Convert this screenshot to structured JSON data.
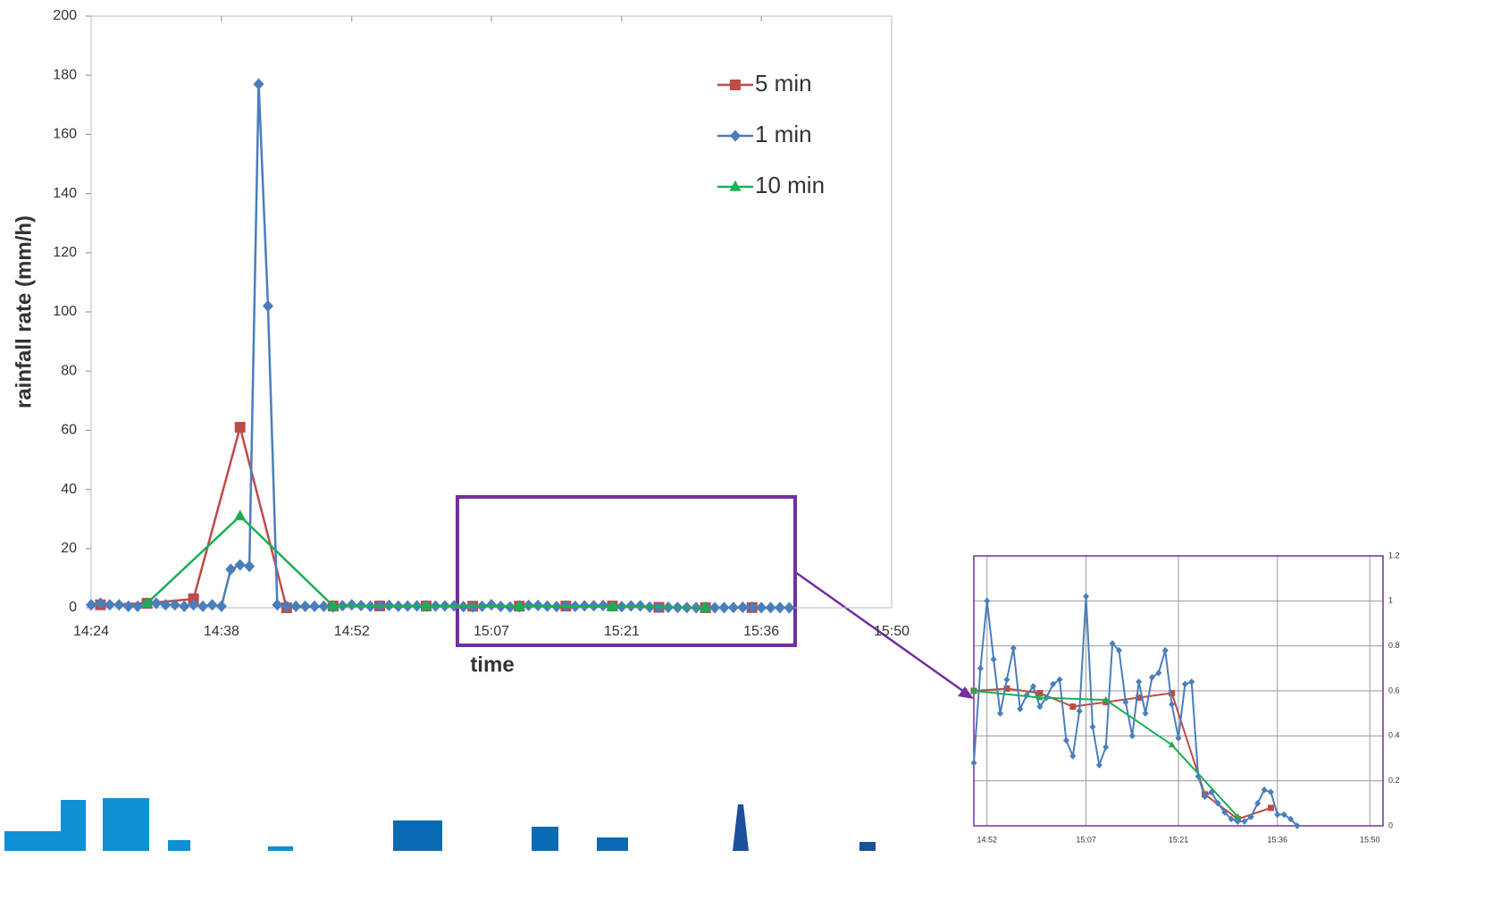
{
  "chart_data": [
    {
      "type": "line",
      "xlabel": "time",
      "ylabel": "rainfall rate (mm/h)",
      "xlim": [
        "14:24",
        "15:50"
      ],
      "xticks": [
        "14:24",
        "14:38",
        "14:52",
        "15:07",
        "15:21",
        "15:36",
        "15:50"
      ],
      "ylim": [
        0,
        200
      ],
      "yticks": [
        0,
        20,
        40,
        60,
        80,
        100,
        120,
        140,
        160,
        180,
        200
      ],
      "grid": false,
      "legend": "upper right",
      "series": [
        {
          "name": "5 min",
          "color": "#be4b48",
          "marker": "square",
          "x": [
            "14:25",
            "14:30",
            "14:35",
            "14:40",
            "14:45",
            "14:50",
            "14:55",
            "15:00",
            "15:05",
            "15:10",
            "15:15",
            "15:20",
            "15:25",
            "15:30",
            "15:35"
          ],
          "values": [
            1,
            1.5,
            3,
            61,
            0,
            0.6,
            0.61,
            0.59,
            0.53,
            0.55,
            0.57,
            0.59,
            0.14,
            0.03,
            0.08
          ]
        },
        {
          "name": "1 min",
          "color": "#4a7ebb",
          "marker": "diamond",
          "x": [
            "14:24",
            "14:25",
            "14:26",
            "14:27",
            "14:28",
            "14:29",
            "14:30",
            "14:31",
            "14:32",
            "14:33",
            "14:34",
            "14:35",
            "14:36",
            "14:37",
            "14:38",
            "14:39",
            "14:40",
            "14:41",
            "14:42",
            "14:43",
            "14:44",
            "14:45",
            "14:46",
            "14:47",
            "14:48",
            "14:49",
            "14:50",
            "14:51",
            "14:52",
            "14:53",
            "14:54",
            "14:55",
            "14:56",
            "14:57",
            "14:58",
            "14:59",
            "15:00",
            "15:01",
            "15:02",
            "15:03",
            "15:04",
            "15:05",
            "15:06",
            "15:07",
            "15:08",
            "15:09",
            "15:10",
            "15:11",
            "15:12",
            "15:13",
            "15:14",
            "15:15",
            "15:16",
            "15:17",
            "15:18",
            "15:19",
            "15:20",
            "15:21",
            "15:22",
            "15:23",
            "15:24",
            "15:25",
            "15:26",
            "15:27",
            "15:28",
            "15:29",
            "15:30",
            "15:31",
            "15:32",
            "15:33",
            "15:34",
            "15:35",
            "15:36",
            "15:37",
            "15:38",
            "15:39"
          ],
          "values": [
            1,
            1.5,
            1,
            1,
            0.5,
            0.5,
            1.5,
            1.5,
            1,
            1,
            0.5,
            1,
            0.5,
            1,
            0.5,
            13,
            14.5,
            14,
            177,
            102,
            1,
            0.5,
            0.5,
            0.5,
            0.5,
            0.5,
            0.28,
            0.7,
            1.0,
            0.74,
            0.5,
            0.65,
            0.79,
            0.52,
            0.58,
            0.62,
            0.53,
            0.57,
            0.63,
            0.65,
            0.38,
            0.31,
            0.51,
            1.02,
            0.44,
            0.27,
            0.35,
            0.81,
            0.78,
            0.55,
            0.4,
            0.64,
            0.5,
            0.66,
            0.68,
            0.78,
            0.54,
            0.39,
            0.63,
            0.64,
            0.22,
            0.13,
            0.15,
            0.1,
            0.06,
            0.03,
            0.02,
            0.02,
            0.04,
            0.1,
            0.16,
            0.15,
            0.05,
            0.05,
            0.03,
            0
          ]
        },
        {
          "name": "10 min",
          "color": "#1aaf54",
          "marker": "triangle",
          "x": [
            "14:30",
            "14:40",
            "14:50",
            "15:00",
            "15:10",
            "15:20",
            "15:30"
          ],
          "values": [
            1.5,
            31,
            0.6,
            0.57,
            0.56,
            0.36,
            0.04
          ]
        }
      ]
    },
    {
      "type": "line",
      "xlim": [
        "14:50",
        "15:52"
      ],
      "xticks": [
        "14:52",
        "15:07",
        "15:21",
        "15:36",
        "15:50"
      ],
      "ylim": [
        0,
        1.2
      ],
      "yticks": [
        0,
        0.2,
        0.4,
        0.6,
        0.8,
        1,
        1.2
      ],
      "grid": true,
      "series": [
        {
          "color": "#be4b48",
          "marker": "square",
          "x": [
            "14:50",
            "14:55",
            "15:00",
            "15:05",
            "15:10",
            "15:15",
            "15:20",
            "15:25",
            "15:30",
            "15:35"
          ],
          "values": [
            0.6,
            0.61,
            0.59,
            0.53,
            0.55,
            0.57,
            0.59,
            0.14,
            0.03,
            0.08
          ]
        },
        {
          "color": "#4a7ebb",
          "marker": "diamond",
          "x": [
            "14:50",
            "14:51",
            "14:52",
            "14:53",
            "14:54",
            "14:55",
            "14:56",
            "14:57",
            "14:58",
            "14:59",
            "15:00",
            "15:01",
            "15:02",
            "15:03",
            "15:04",
            "15:05",
            "15:06",
            "15:07",
            "15:08",
            "15:09",
            "15:10",
            "15:11",
            "15:12",
            "15:13",
            "15:14",
            "15:15",
            "15:16",
            "15:17",
            "15:18",
            "15:19",
            "15:20",
            "15:21",
            "15:22",
            "15:23",
            "15:24",
            "15:25",
            "15:26",
            "15:27",
            "15:28",
            "15:29",
            "15:30",
            "15:31",
            "15:32",
            "15:33",
            "15:34",
            "15:35",
            "15:36",
            "15:37",
            "15:38",
            "15:39"
          ],
          "values": [
            0.28,
            0.7,
            1.0,
            0.74,
            0.5,
            0.65,
            0.79,
            0.52,
            0.58,
            0.62,
            0.53,
            0.57,
            0.63,
            0.65,
            0.38,
            0.31,
            0.51,
            1.02,
            0.44,
            0.27,
            0.35,
            0.81,
            0.78,
            0.55,
            0.4,
            0.64,
            0.5,
            0.66,
            0.68,
            0.78,
            0.54,
            0.39,
            0.63,
            0.64,
            0.22,
            0.13,
            0.15,
            0.1,
            0.06,
            0.03,
            0.02,
            0.02,
            0.04,
            0.1,
            0.16,
            0.15,
            0.05,
            0.05,
            0.03,
            0
          ]
        },
        {
          "color": "#1aaf54",
          "marker": "triangle",
          "x": [
            "14:50",
            "15:00",
            "15:10",
            "15:20",
            "15:30"
          ],
          "values": [
            0.6,
            0.57,
            0.56,
            0.36,
            0.04
          ]
        }
      ]
    }
  ]
}
